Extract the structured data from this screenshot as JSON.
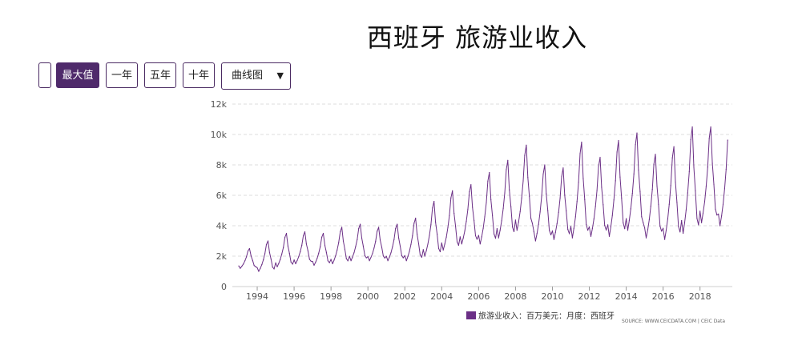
{
  "title": "西班牙 旅游业收入",
  "controls": {
    "buttons": [
      {
        "label": "",
        "active": false
      },
      {
        "label": "最大值",
        "active": true
      },
      {
        "label": "一年",
        "active": false
      },
      {
        "label": "五年",
        "active": false
      },
      {
        "label": "十年",
        "active": false
      }
    ],
    "chart_type_select": "曲线图"
  },
  "colors": {
    "accent": "#4f2a6b",
    "series": "#6b2f86",
    "grid": "#dcdcdc"
  },
  "chart_data": {
    "type": "line",
    "title": "西班牙 旅游业收入",
    "ylim": [
      0,
      12000
    ],
    "yticks": [
      0,
      2000,
      4000,
      6000,
      8000,
      10000,
      12000
    ],
    "ytick_labels": [
      "0",
      "2k",
      "4k",
      "6k",
      "8k",
      "10k",
      "12k"
    ],
    "xticks": [
      1994,
      1996,
      1998,
      2000,
      2002,
      2004,
      2006,
      2008,
      2010,
      2012,
      2014,
      2016,
      2018
    ],
    "xlim": [
      1993.0,
      2019.75
    ],
    "grid": true,
    "legend_position": "bottom-right",
    "frequency": "monthly",
    "series": [
      {
        "name": "旅游业收入：百万美元：月度：西班牙",
        "x_start": "1993-01",
        "yearly": [
          {
            "year": 1993,
            "trough": 1200,
            "peak": 2500
          },
          {
            "year": 1994,
            "trough": 1000,
            "peak": 3000
          },
          {
            "year": 1995,
            "trough": 1300,
            "peak": 3500
          },
          {
            "year": 1996,
            "trough": 1500,
            "peak": 3600
          },
          {
            "year": 1997,
            "trough": 1400,
            "peak": 3500
          },
          {
            "year": 1998,
            "trough": 1500,
            "peak": 3900
          },
          {
            "year": 1999,
            "trough": 1700,
            "peak": 4100
          },
          {
            "year": 2000,
            "trough": 1700,
            "peak": 3900
          },
          {
            "year": 2001,
            "trough": 1700,
            "peak": 4100
          },
          {
            "year": 2002,
            "trough": 1700,
            "peak": 4500
          },
          {
            "year": 2003,
            "trough": 2000,
            "peak": 5600
          },
          {
            "year": 2004,
            "trough": 2400,
            "peak": 6300
          },
          {
            "year": 2005,
            "trough": 2800,
            "peak": 6700
          },
          {
            "year": 2006,
            "trough": 2800,
            "peak": 7500
          },
          {
            "year": 2007,
            "trough": 3200,
            "peak": 8300
          },
          {
            "year": 2008,
            "trough": 3700,
            "peak": 9300
          },
          {
            "year": 2009,
            "trough": 3000,
            "peak": 8000
          },
          {
            "year": 2010,
            "trough": 3100,
            "peak": 7800
          },
          {
            "year": 2011,
            "trough": 3200,
            "peak": 9500
          },
          {
            "year": 2012,
            "trough": 3300,
            "peak": 8500
          },
          {
            "year": 2013,
            "trough": 3300,
            "peak": 9600
          },
          {
            "year": 2014,
            "trough": 3700,
            "peak": 10100
          },
          {
            "year": 2015,
            "trough": 3200,
            "peak": 8700
          },
          {
            "year": 2016,
            "trough": 3100,
            "peak": 9200
          },
          {
            "year": 2017,
            "trough": 3500,
            "peak": 10500
          },
          {
            "year": 2018,
            "trough": 4200,
            "peak": 10500
          },
          {
            "year": 2019,
            "trough": 4000,
            "peak": 10400
          }
        ],
        "last_month": "2019-07"
      }
    ]
  },
  "legend": {
    "label": "旅游业收入：百万美元：月度：西班牙"
  },
  "source": "SOURCE: WWW.CEICDATA.COM | CEIC Data"
}
